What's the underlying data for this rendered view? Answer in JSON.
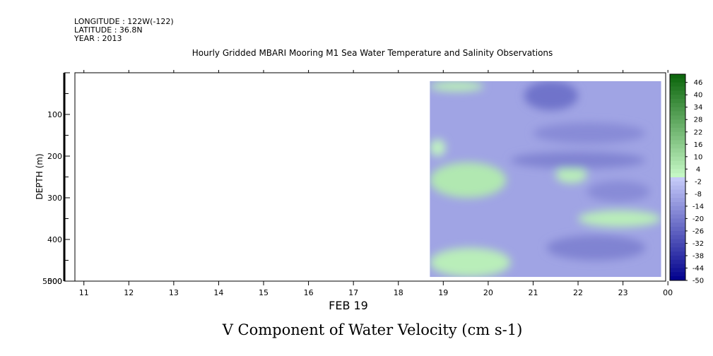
{
  "header": {
    "longitude": "LONGITUDE : 122W(-122)",
    "latitude": "LATITUDE : 36.8N",
    "year": "YEAR : 2013",
    "title": "Hourly Gridded MBARI Mooring M1 Sea Water Temperature and Salinity Observations"
  },
  "footer": {
    "variable_title": "V Component of Water Velocity (cm s-1)"
  },
  "chart_data": {
    "type": "heatmap",
    "title": "Hourly Gridded MBARI Mooring M1 Sea Water Temperature and Salinity Observations",
    "subtitle": "V Component of Water Velocity (cm s-1)",
    "xlabel": "FEB 19",
    "ylabel": "DEPTH (m)",
    "x_ticks": [
      "11",
      "12",
      "13",
      "14",
      "15",
      "16",
      "17",
      "18",
      "19",
      "20",
      "21",
      "22",
      "23",
      "00"
    ],
    "x_range_days": [
      10.8,
      23.95
    ],
    "y_ticks": [
      "100",
      "200",
      "300",
      "400",
      "500"
    ],
    "y_bottom_labels": [
      "5000",
      "500"
    ],
    "ylim": [
      0,
      500
    ],
    "data_x_start_day": 18.7,
    "data_x_end_day": 23.85,
    "data_depth_range": [
      20,
      490
    ],
    "colorbar": {
      "labels": [
        "46",
        "40",
        "34",
        "28",
        "22",
        "16",
        "10",
        "4",
        "-2",
        "-8",
        "-14",
        "-20",
        "-26",
        "-32",
        "-38",
        "-44",
        "-50"
      ],
      "min": -50,
      "max": 50,
      "step": 2
    },
    "background_value": -10,
    "features": [
      {
        "x0": 18.7,
        "x1": 19.9,
        "depth0": 20,
        "depth1": 45,
        "value": 4
      },
      {
        "x0": 18.7,
        "x1": 19.05,
        "depth0": 160,
        "depth1": 200,
        "value": 2
      },
      {
        "x0": 18.7,
        "x1": 20.4,
        "depth0": 215,
        "depth1": 300,
        "value": 6
      },
      {
        "x0": 21.5,
        "x1": 22.2,
        "depth0": 225,
        "depth1": 265,
        "value": 4
      },
      {
        "x0": 22.0,
        "x1": 23.85,
        "depth0": 330,
        "depth1": 370,
        "value": 4
      },
      {
        "x0": 18.7,
        "x1": 20.5,
        "depth0": 420,
        "depth1": 490,
        "value": 4
      },
      {
        "x0": 20.8,
        "x1": 22.0,
        "depth0": 20,
        "depth1": 90,
        "value": -22
      },
      {
        "x0": 21.0,
        "x1": 23.5,
        "depth0": 120,
        "depth1": 170,
        "value": -16
      },
      {
        "x0": 20.5,
        "x1": 23.5,
        "depth0": 190,
        "depth1": 230,
        "value": -18
      },
      {
        "x0": 22.2,
        "x1": 23.6,
        "depth0": 260,
        "depth1": 310,
        "value": -16
      },
      {
        "x0": 21.3,
        "x1": 23.5,
        "depth0": 390,
        "depth1": 450,
        "value": -18
      }
    ]
  }
}
